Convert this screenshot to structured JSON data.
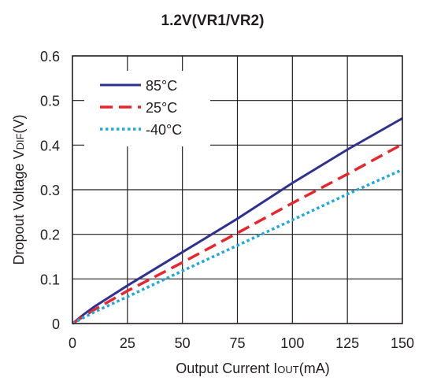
{
  "chart_data": {
    "type": "line",
    "title": "1.2V(VR1/VR2)",
    "xlabel": {
      "main": "Output Current I",
      "sub": "OUT",
      "unit": "(mA)"
    },
    "ylabel": {
      "main": "Dropout Voltage V",
      "sub": "DIF",
      "unit": "(V)"
    },
    "xlim": [
      0,
      150
    ],
    "ylim": [
      0,
      0.6
    ],
    "xticks": [
      0,
      25,
      50,
      75,
      100,
      125,
      150
    ],
    "yticks": [
      0,
      0.1,
      0.2,
      0.3,
      0.4,
      0.5,
      0.6
    ],
    "xtick_labels": [
      "0",
      "25",
      "50",
      "75",
      "100",
      "125",
      "150"
    ],
    "ytick_labels": [
      "0",
      "0.1",
      "0.2",
      "0.3",
      "0.4",
      "0.5",
      "0.6"
    ],
    "grid": true,
    "legend_position": "top-left",
    "series": [
      {
        "name": "85°C",
        "color": "#2e3192",
        "dash": "solid",
        "x": [
          0,
          5,
          10,
          25,
          50,
          75,
          100,
          125,
          150
        ],
        "y": [
          0,
          0.02,
          0.038,
          0.085,
          0.16,
          0.235,
          0.315,
          0.39,
          0.46
        ]
      },
      {
        "name": "25°C",
        "color": "#e8262d",
        "dash": "dashed",
        "x": [
          0,
          5,
          10,
          25,
          50,
          75,
          100,
          125,
          150
        ],
        "y": [
          0,
          0.016,
          0.031,
          0.073,
          0.137,
          0.203,
          0.27,
          0.335,
          0.402
        ]
      },
      {
        "name": "-40°C",
        "color": "#1fa8e0",
        "dash": "dotted",
        "x": [
          0,
          5,
          10,
          25,
          50,
          75,
          100,
          125,
          150
        ],
        "y": [
          0,
          0.013,
          0.026,
          0.06,
          0.118,
          0.175,
          0.232,
          0.29,
          0.345
        ]
      }
    ]
  }
}
